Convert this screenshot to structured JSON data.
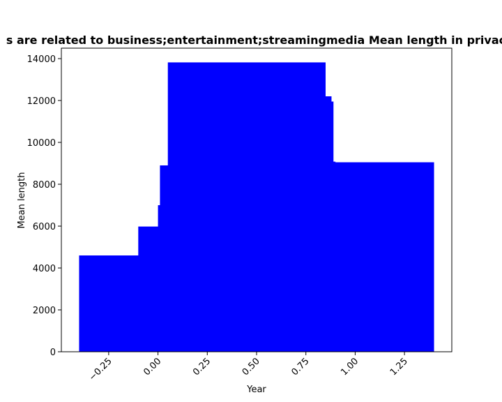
{
  "chart_data": {
    "type": "bar",
    "title": "Mean length in privacy policies of websites that are related to business;entertainment;streamingmedia",
    "title_visible": "s are related to business;entertainment;streamingmedia Mean length in privac",
    "xlabel": "Year",
    "ylabel": "Mean length",
    "xlim": [
      -0.49,
      1.49
    ],
    "ylim": [
      0,
      14500
    ],
    "xticks": [
      -0.25,
      0.0,
      0.25,
      0.5,
      0.75,
      1.0,
      1.25
    ],
    "xtick_labels": [
      "−0.25",
      "0.00",
      "0.25",
      "0.50",
      "0.75",
      "1.00",
      "1.25"
    ],
    "yticks": [
      0,
      2000,
      4000,
      6000,
      8000,
      10000,
      12000,
      14000
    ],
    "ytick_labels": [
      "0",
      "2000",
      "4000",
      "6000",
      "8000",
      "10000",
      "12000",
      "14000"
    ],
    "grid": false,
    "bar_color": "#0000ff",
    "bars": [
      {
        "x": -0.4,
        "width": 0.8,
        "value": 4600
      },
      {
        "x": -0.1,
        "width": 0.8,
        "value": 5980
      },
      {
        "x": 0.0,
        "width": 0.8,
        "value": 7000
      },
      {
        "x": 0.01,
        "width": 0.8,
        "value": 8900
      },
      {
        "x": 0.05,
        "width": 0.8,
        "value": 13820
      },
      {
        "x": 0.08,
        "width": 0.8,
        "value": 12200
      },
      {
        "x": 0.09,
        "width": 0.8,
        "value": 11950
      },
      {
        "x": 0.1,
        "width": 0.8,
        "value": 9080
      },
      {
        "x": 0.6,
        "width": 0.8,
        "value": 9050
      }
    ]
  }
}
